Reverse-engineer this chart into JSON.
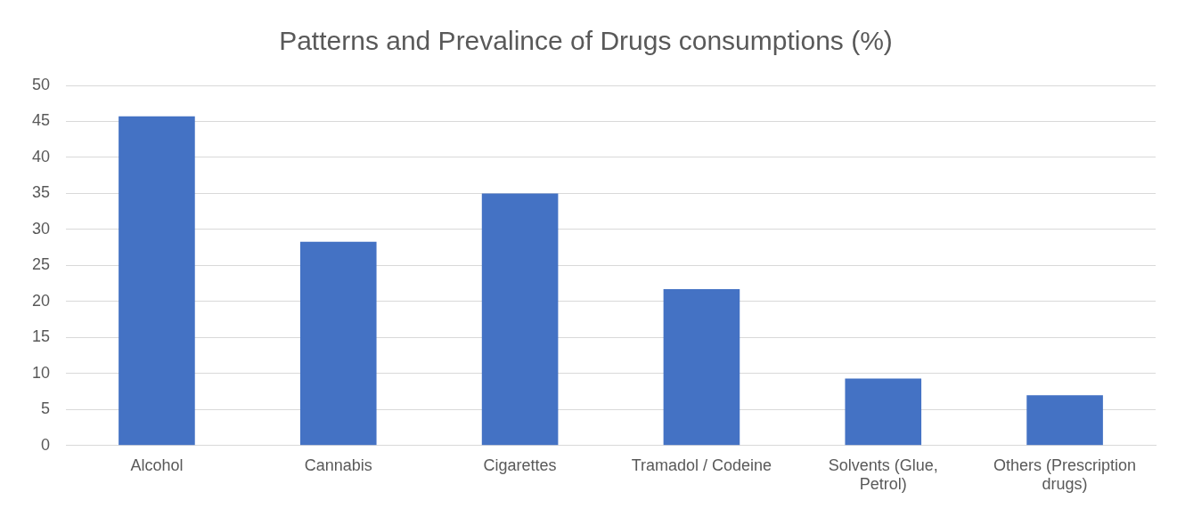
{
  "chart_data": {
    "type": "bar",
    "title": "Patterns and Prevalince of Drugs consumptions (%)",
    "categories": [
      "Alcohol",
      "Cannabis",
      "Cigarettes",
      "Tramadol / Codeine",
      "Solvents (Glue, Petrol)",
      "Others (Prescription drugs)"
    ],
    "values": [
      45.7,
      28.3,
      35,
      21.7,
      9.3,
      7
    ],
    "color": "#4472c4",
    "ylim": [
      0,
      50
    ],
    "yticks": [
      0,
      5,
      10,
      15,
      20,
      25,
      30,
      35,
      40,
      45,
      50
    ],
    "grid": "y",
    "legend": false
  }
}
